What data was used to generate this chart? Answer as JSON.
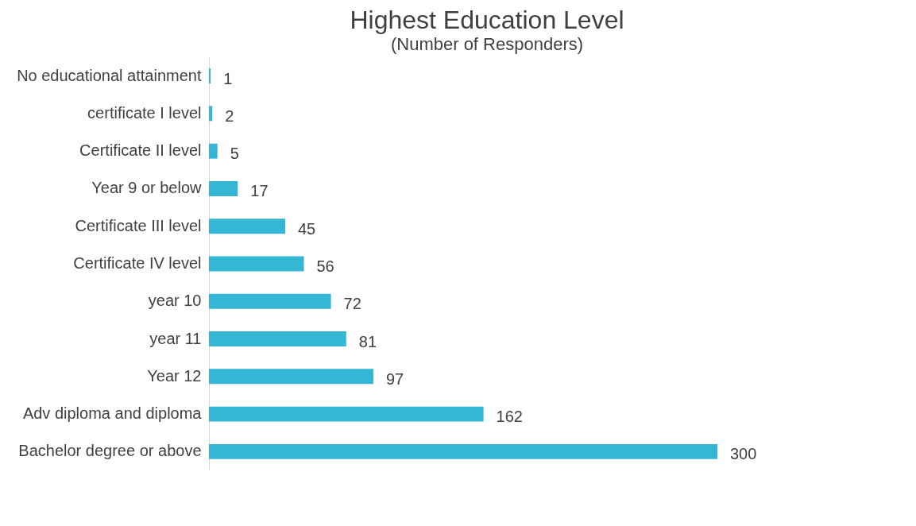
{
  "chart_data": {
    "type": "bar",
    "orientation": "horizontal",
    "title": "Highest Education Level",
    "subtitle": "(Number of Responders)",
    "categories": [
      "No educational attainment",
      "certificate I level",
      "Certificate II level",
      "Year 9 or below",
      "Certificate III level",
      "Certificate IV level",
      "year 10",
      "year 11",
      "Year 12",
      "Adv diploma and diploma",
      "Bachelor degree or above"
    ],
    "values": [
      1,
      2,
      5,
      17,
      45,
      56,
      72,
      81,
      97,
      162,
      300
    ],
    "color": "#35b6d4",
    "data_labels": true
  }
}
